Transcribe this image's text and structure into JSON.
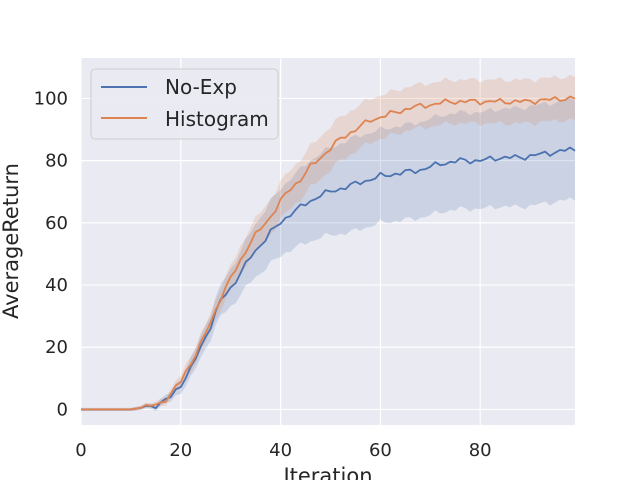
{
  "chart_data": {
    "type": "line",
    "title": "",
    "xlabel": "Iteration",
    "ylabel": "AverageReturn",
    "xlim": [
      0,
      99
    ],
    "ylim": [
      -5,
      113
    ],
    "xticks": [
      0,
      20,
      40,
      60,
      80
    ],
    "yticks": [
      0,
      20,
      40,
      60,
      80,
      100
    ],
    "grid": true,
    "legend_position": "top-left",
    "series": [
      {
        "name": "No-Exp",
        "color": "#4c72b0",
        "keypoints": [
          [
            0,
            0
          ],
          [
            10,
            0
          ],
          [
            14,
            1
          ],
          [
            16,
            2
          ],
          [
            18,
            4
          ],
          [
            20,
            8
          ],
          [
            22,
            13
          ],
          [
            24,
            20
          ],
          [
            26,
            27
          ],
          [
            28,
            35
          ],
          [
            30,
            39
          ],
          [
            32,
            44
          ],
          [
            34,
            49
          ],
          [
            36,
            53
          ],
          [
            38,
            57
          ],
          [
            40,
            60
          ],
          [
            42,
            63
          ],
          [
            44,
            65
          ],
          [
            46,
            67
          ],
          [
            48,
            69
          ],
          [
            50,
            70
          ],
          [
            52,
            71
          ],
          [
            54,
            72
          ],
          [
            56,
            73
          ],
          [
            58,
            74
          ],
          [
            60,
            75
          ],
          [
            62,
            75.5
          ],
          [
            64,
            76
          ],
          [
            66,
            76.5
          ],
          [
            68,
            77
          ],
          [
            70,
            78
          ],
          [
            72,
            79
          ],
          [
            74,
            79.5
          ],
          [
            76,
            80
          ],
          [
            78,
            80
          ],
          [
            80,
            80
          ],
          [
            82,
            80.5
          ],
          [
            84,
            81
          ],
          [
            86,
            81
          ],
          [
            88,
            81
          ],
          [
            90,
            81.5
          ],
          [
            92,
            82
          ],
          [
            94,
            82.5
          ],
          [
            96,
            83
          ],
          [
            98,
            83.5
          ],
          [
            99,
            83.5
          ]
        ],
        "band_width_keypoints": [
          [
            0,
            0.5
          ],
          [
            10,
            0.5
          ],
          [
            14,
            0.8
          ],
          [
            18,
            1.5
          ],
          [
            22,
            3
          ],
          [
            26,
            4
          ],
          [
            30,
            6
          ],
          [
            34,
            8
          ],
          [
            38,
            10
          ],
          [
            42,
            11.5
          ],
          [
            46,
            13
          ],
          [
            50,
            14
          ],
          [
            54,
            15
          ],
          [
            60,
            15
          ],
          [
            70,
            15.5
          ],
          [
            80,
            15.5
          ],
          [
            90,
            16
          ],
          [
            99,
            16
          ]
        ]
      },
      {
        "name": "Histogram",
        "color": "#dd8452",
        "keypoints": [
          [
            0,
            0
          ],
          [
            10,
            0
          ],
          [
            14,
            1
          ],
          [
            16,
            2
          ],
          [
            18,
            5
          ],
          [
            20,
            9
          ],
          [
            22,
            15
          ],
          [
            24,
            21
          ],
          [
            26,
            28
          ],
          [
            28,
            36
          ],
          [
            30,
            42
          ],
          [
            32,
            48
          ],
          [
            34,
            54
          ],
          [
            36,
            58
          ],
          [
            38,
            62
          ],
          [
            40,
            67
          ],
          [
            42,
            71
          ],
          [
            44,
            74
          ],
          [
            46,
            78
          ],
          [
            48,
            81
          ],
          [
            50,
            84
          ],
          [
            52,
            87
          ],
          [
            54,
            89
          ],
          [
            56,
            91
          ],
          [
            58,
            93
          ],
          [
            60,
            94
          ],
          [
            62,
            95
          ],
          [
            64,
            96
          ],
          [
            66,
            97
          ],
          [
            68,
            97.5
          ],
          [
            70,
            98
          ],
          [
            72,
            98.5
          ],
          [
            74,
            99
          ],
          [
            76,
            99
          ],
          [
            78,
            99
          ],
          [
            80,
            99
          ],
          [
            82,
            99
          ],
          [
            84,
            99
          ],
          [
            86,
            99
          ],
          [
            88,
            99
          ],
          [
            90,
            99
          ],
          [
            92,
            99.5
          ],
          [
            94,
            99.5
          ],
          [
            96,
            100
          ],
          [
            98,
            100
          ],
          [
            99,
            100
          ]
        ],
        "band_width_keypoints": [
          [
            0,
            0.5
          ],
          [
            10,
            0.5
          ],
          [
            14,
            0.8
          ],
          [
            18,
            1.5
          ],
          [
            22,
            2.5
          ],
          [
            26,
            3
          ],
          [
            30,
            4
          ],
          [
            34,
            5
          ],
          [
            40,
            6
          ],
          [
            50,
            7
          ],
          [
            60,
            7
          ],
          [
            70,
            7
          ],
          [
            80,
            7
          ],
          [
            90,
            7
          ],
          [
            99,
            7
          ]
        ]
      }
    ]
  }
}
